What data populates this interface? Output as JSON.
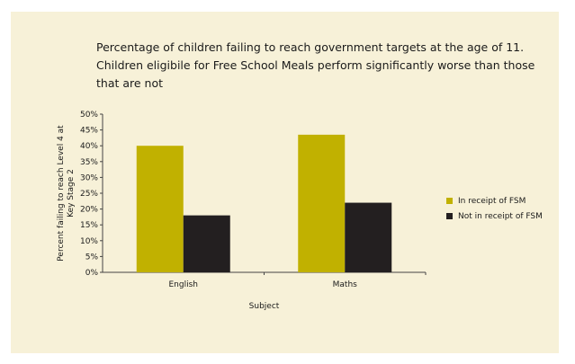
{
  "chart_data": {
    "type": "bar",
    "title_lines": [
      "Percentage of children failing to reach government targets at the age of 11.",
      "Children eligibile for Free School Meals perform significantly worse than those",
      "that are not"
    ],
    "xlabel": "Subject",
    "ylabel_lines": [
      "Percent failing to reach Level 4 at",
      "Key Stage 2"
    ],
    "categories": [
      "English",
      "Maths"
    ],
    "series": [
      {
        "name": "In receipt of FSM",
        "values": [
          40,
          43.5
        ],
        "color": "#c1b100"
      },
      {
        "name": "Not in receipt of  FSM",
        "values": [
          18,
          22
        ],
        "color": "#231f20"
      }
    ],
    "ylim": [
      0,
      50
    ],
    "yticks": [
      0,
      5,
      10,
      15,
      20,
      25,
      30,
      35,
      40,
      45,
      50
    ],
    "ytick_labels": [
      "0%",
      "5%",
      "10%",
      "15%",
      "20%",
      "25%",
      "30%",
      "35%",
      "40%",
      "45%",
      "50%"
    ],
    "grid": false,
    "legend_position": "right"
  }
}
